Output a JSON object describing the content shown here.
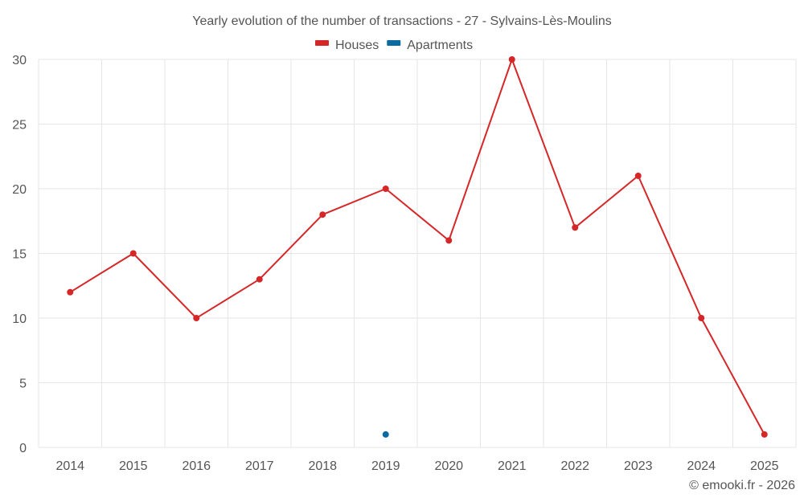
{
  "chart_data": {
    "type": "line",
    "title": "Yearly evolution of the number of transactions - 27 - Sylvains-Lès-Moulins",
    "categories": [
      "2014",
      "2015",
      "2016",
      "2017",
      "2018",
      "2019",
      "2020",
      "2021",
      "2022",
      "2023",
      "2024",
      "2025"
    ],
    "series": [
      {
        "name": "Houses",
        "color": "#d62728",
        "values": [
          12,
          15,
          10,
          13,
          18,
          20,
          16,
          30,
          17,
          21,
          10,
          1
        ]
      },
      {
        "name": "Apartments",
        "color": "#0b6aa2",
        "values": [
          null,
          null,
          null,
          null,
          null,
          1,
          null,
          null,
          null,
          null,
          null,
          null
        ]
      }
    ],
    "ylim": [
      0,
      30
    ],
    "yticks": [
      0,
      5,
      10,
      15,
      20,
      25,
      30
    ],
    "xlabel": "",
    "ylabel": "",
    "legend_position": "top-center",
    "grid": true
  },
  "credit": "© emooki.fr - 2026"
}
